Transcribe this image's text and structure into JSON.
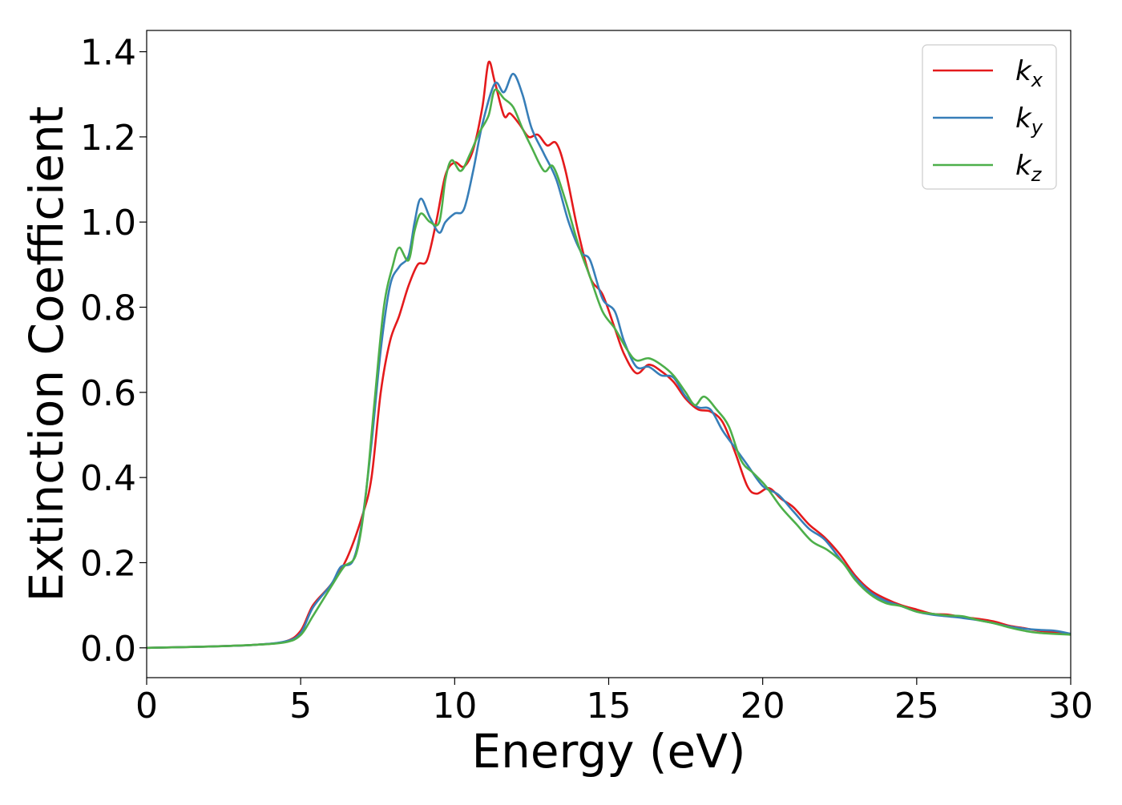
{
  "chart_data": {
    "type": "line",
    "title": "",
    "xlabel": "Energy (eV)",
    "ylabel": "Extinction Coefficient",
    "xlim": [
      0,
      30
    ],
    "ylim": [
      -0.07,
      1.45
    ],
    "xticks": [
      0,
      5,
      10,
      15,
      20,
      25,
      30
    ],
    "yticks": [
      0.0,
      0.2,
      0.4,
      0.6,
      0.8,
      1.0,
      1.2,
      1.4
    ],
    "xtick_labels": [
      "0",
      "5",
      "10",
      "15",
      "20",
      "25",
      "30"
    ],
    "ytick_labels": [
      "0.0",
      "0.2",
      "0.4",
      "0.6",
      "0.8",
      "1.0",
      "1.2",
      "1.4"
    ],
    "grid": false,
    "legend_position": "top-right",
    "series": [
      {
        "name": "k",
        "subscript": "x",
        "color": "#e41a1c",
        "points": [
          [
            0,
            0.0
          ],
          [
            2,
            0.003
          ],
          [
            3.5,
            0.007
          ],
          [
            4.5,
            0.015
          ],
          [
            5.0,
            0.04
          ],
          [
            5.4,
            0.1
          ],
          [
            6.0,
            0.15
          ],
          [
            6.5,
            0.21
          ],
          [
            7.0,
            0.31
          ],
          [
            7.3,
            0.4
          ],
          [
            7.6,
            0.6
          ],
          [
            7.9,
            0.72
          ],
          [
            8.2,
            0.78
          ],
          [
            8.5,
            0.85
          ],
          [
            8.8,
            0.9
          ],
          [
            9.1,
            0.91
          ],
          [
            9.4,
            1.0
          ],
          [
            9.7,
            1.11
          ],
          [
            10.0,
            1.14
          ],
          [
            10.3,
            1.13
          ],
          [
            10.6,
            1.17
          ],
          [
            10.9,
            1.27
          ],
          [
            11.1,
            1.375
          ],
          [
            11.3,
            1.33
          ],
          [
            11.6,
            1.25
          ],
          [
            11.8,
            1.255
          ],
          [
            12.1,
            1.23
          ],
          [
            12.4,
            1.2
          ],
          [
            12.7,
            1.205
          ],
          [
            13.0,
            1.18
          ],
          [
            13.3,
            1.185
          ],
          [
            13.6,
            1.12
          ],
          [
            14.0,
            0.98
          ],
          [
            14.4,
            0.87
          ],
          [
            14.8,
            0.83
          ],
          [
            15.2,
            0.75
          ],
          [
            15.5,
            0.69
          ],
          [
            15.9,
            0.645
          ],
          [
            16.3,
            0.665
          ],
          [
            16.7,
            0.65
          ],
          [
            17.1,
            0.625
          ],
          [
            17.5,
            0.585
          ],
          [
            17.9,
            0.56
          ],
          [
            18.3,
            0.555
          ],
          [
            18.7,
            0.53
          ],
          [
            19.1,
            0.46
          ],
          [
            19.5,
            0.38
          ],
          [
            19.8,
            0.362
          ],
          [
            20.2,
            0.375
          ],
          [
            20.6,
            0.35
          ],
          [
            21.0,
            0.33
          ],
          [
            21.5,
            0.29
          ],
          [
            22.0,
            0.26
          ],
          [
            22.5,
            0.22
          ],
          [
            23.0,
            0.17
          ],
          [
            23.5,
            0.135
          ],
          [
            24.0,
            0.115
          ],
          [
            24.5,
            0.1
          ],
          [
            25.0,
            0.09
          ],
          [
            25.5,
            0.08
          ],
          [
            26.0,
            0.078
          ],
          [
            26.5,
            0.072
          ],
          [
            27.0,
            0.068
          ],
          [
            27.5,
            0.062
          ],
          [
            28.0,
            0.052
          ],
          [
            28.5,
            0.046
          ],
          [
            29.0,
            0.04
          ],
          [
            30.0,
            0.032
          ]
        ]
      },
      {
        "name": "k",
        "subscript": "y",
        "color": "#377eb8",
        "points": [
          [
            0,
            0.0
          ],
          [
            2,
            0.003
          ],
          [
            3.5,
            0.007
          ],
          [
            4.5,
            0.015
          ],
          [
            5.0,
            0.035
          ],
          [
            5.4,
            0.095
          ],
          [
            6.0,
            0.15
          ],
          [
            6.3,
            0.19
          ],
          [
            6.7,
            0.205
          ],
          [
            7.0,
            0.3
          ],
          [
            7.3,
            0.48
          ],
          [
            7.6,
            0.7
          ],
          [
            7.9,
            0.85
          ],
          [
            8.2,
            0.895
          ],
          [
            8.5,
            0.92
          ],
          [
            8.7,
            1.0
          ],
          [
            8.9,
            1.055
          ],
          [
            9.2,
            1.01
          ],
          [
            9.5,
            0.975
          ],
          [
            9.7,
            1.0
          ],
          [
            10.0,
            1.02
          ],
          [
            10.3,
            1.03
          ],
          [
            10.6,
            1.12
          ],
          [
            10.9,
            1.23
          ],
          [
            11.3,
            1.325
          ],
          [
            11.6,
            1.305
          ],
          [
            11.9,
            1.348
          ],
          [
            12.2,
            1.3
          ],
          [
            12.5,
            1.22
          ],
          [
            12.9,
            1.16
          ],
          [
            13.3,
            1.1
          ],
          [
            13.7,
            1.0
          ],
          [
            14.1,
            0.93
          ],
          [
            14.4,
            0.91
          ],
          [
            14.8,
            0.82
          ],
          [
            15.2,
            0.79
          ],
          [
            15.5,
            0.72
          ],
          [
            15.9,
            0.66
          ],
          [
            16.3,
            0.66
          ],
          [
            16.7,
            0.64
          ],
          [
            17.1,
            0.635
          ],
          [
            17.5,
            0.59
          ],
          [
            17.9,
            0.565
          ],
          [
            18.3,
            0.56
          ],
          [
            18.7,
            0.51
          ],
          [
            19.1,
            0.47
          ],
          [
            19.5,
            0.43
          ],
          [
            20.0,
            0.38
          ],
          [
            20.5,
            0.36
          ],
          [
            21.0,
            0.32
          ],
          [
            21.5,
            0.28
          ],
          [
            22.0,
            0.255
          ],
          [
            22.5,
            0.21
          ],
          [
            23.0,
            0.165
          ],
          [
            23.5,
            0.13
          ],
          [
            24.0,
            0.11
          ],
          [
            24.5,
            0.098
          ],
          [
            25.0,
            0.085
          ],
          [
            25.5,
            0.078
          ],
          [
            26.0,
            0.074
          ],
          [
            26.5,
            0.07
          ],
          [
            27.0,
            0.065
          ],
          [
            27.5,
            0.058
          ],
          [
            28.0,
            0.05
          ],
          [
            28.5,
            0.045
          ],
          [
            29.0,
            0.042
          ],
          [
            29.5,
            0.04
          ],
          [
            30.0,
            0.033
          ]
        ]
      },
      {
        "name": "k",
        "subscript": "z",
        "color": "#4daf4a",
        "points": [
          [
            0,
            0.0
          ],
          [
            2,
            0.003
          ],
          [
            3.5,
            0.007
          ],
          [
            4.5,
            0.013
          ],
          [
            5.0,
            0.03
          ],
          [
            5.4,
            0.075
          ],
          [
            6.0,
            0.145
          ],
          [
            6.4,
            0.19
          ],
          [
            6.8,
            0.22
          ],
          [
            7.1,
            0.35
          ],
          [
            7.4,
            0.58
          ],
          [
            7.7,
            0.8
          ],
          [
            8.0,
            0.9
          ],
          [
            8.2,
            0.94
          ],
          [
            8.5,
            0.91
          ],
          [
            8.7,
            0.98
          ],
          [
            8.9,
            1.02
          ],
          [
            9.2,
            1.0
          ],
          [
            9.5,
            1.0
          ],
          [
            9.7,
            1.1
          ],
          [
            9.9,
            1.145
          ],
          [
            10.2,
            1.12
          ],
          [
            10.5,
            1.16
          ],
          [
            10.8,
            1.21
          ],
          [
            11.1,
            1.25
          ],
          [
            11.3,
            1.31
          ],
          [
            11.6,
            1.29
          ],
          [
            11.9,
            1.27
          ],
          [
            12.2,
            1.22
          ],
          [
            12.5,
            1.175
          ],
          [
            12.9,
            1.12
          ],
          [
            13.2,
            1.13
          ],
          [
            13.6,
            1.05
          ],
          [
            14.0,
            0.95
          ],
          [
            14.4,
            0.87
          ],
          [
            14.8,
            0.79
          ],
          [
            15.2,
            0.75
          ],
          [
            15.6,
            0.7
          ],
          [
            15.9,
            0.675
          ],
          [
            16.3,
            0.68
          ],
          [
            16.7,
            0.665
          ],
          [
            17.1,
            0.64
          ],
          [
            17.5,
            0.6
          ],
          [
            17.8,
            0.57
          ],
          [
            18.1,
            0.59
          ],
          [
            18.5,
            0.56
          ],
          [
            18.9,
            0.52
          ],
          [
            19.3,
            0.44
          ],
          [
            19.7,
            0.41
          ],
          [
            20.1,
            0.38
          ],
          [
            20.6,
            0.33
          ],
          [
            21.1,
            0.29
          ],
          [
            21.6,
            0.25
          ],
          [
            22.1,
            0.23
          ],
          [
            22.6,
            0.2
          ],
          [
            23.0,
            0.16
          ],
          [
            23.5,
            0.125
          ],
          [
            24.0,
            0.105
          ],
          [
            24.5,
            0.098
          ],
          [
            25.0,
            0.085
          ],
          [
            25.5,
            0.08
          ],
          [
            26.0,
            0.076
          ],
          [
            26.5,
            0.074
          ],
          [
            27.0,
            0.065
          ],
          [
            27.5,
            0.058
          ],
          [
            28.0,
            0.048
          ],
          [
            28.5,
            0.04
          ],
          [
            29.0,
            0.035
          ],
          [
            30.0,
            0.031
          ]
        ]
      }
    ]
  }
}
